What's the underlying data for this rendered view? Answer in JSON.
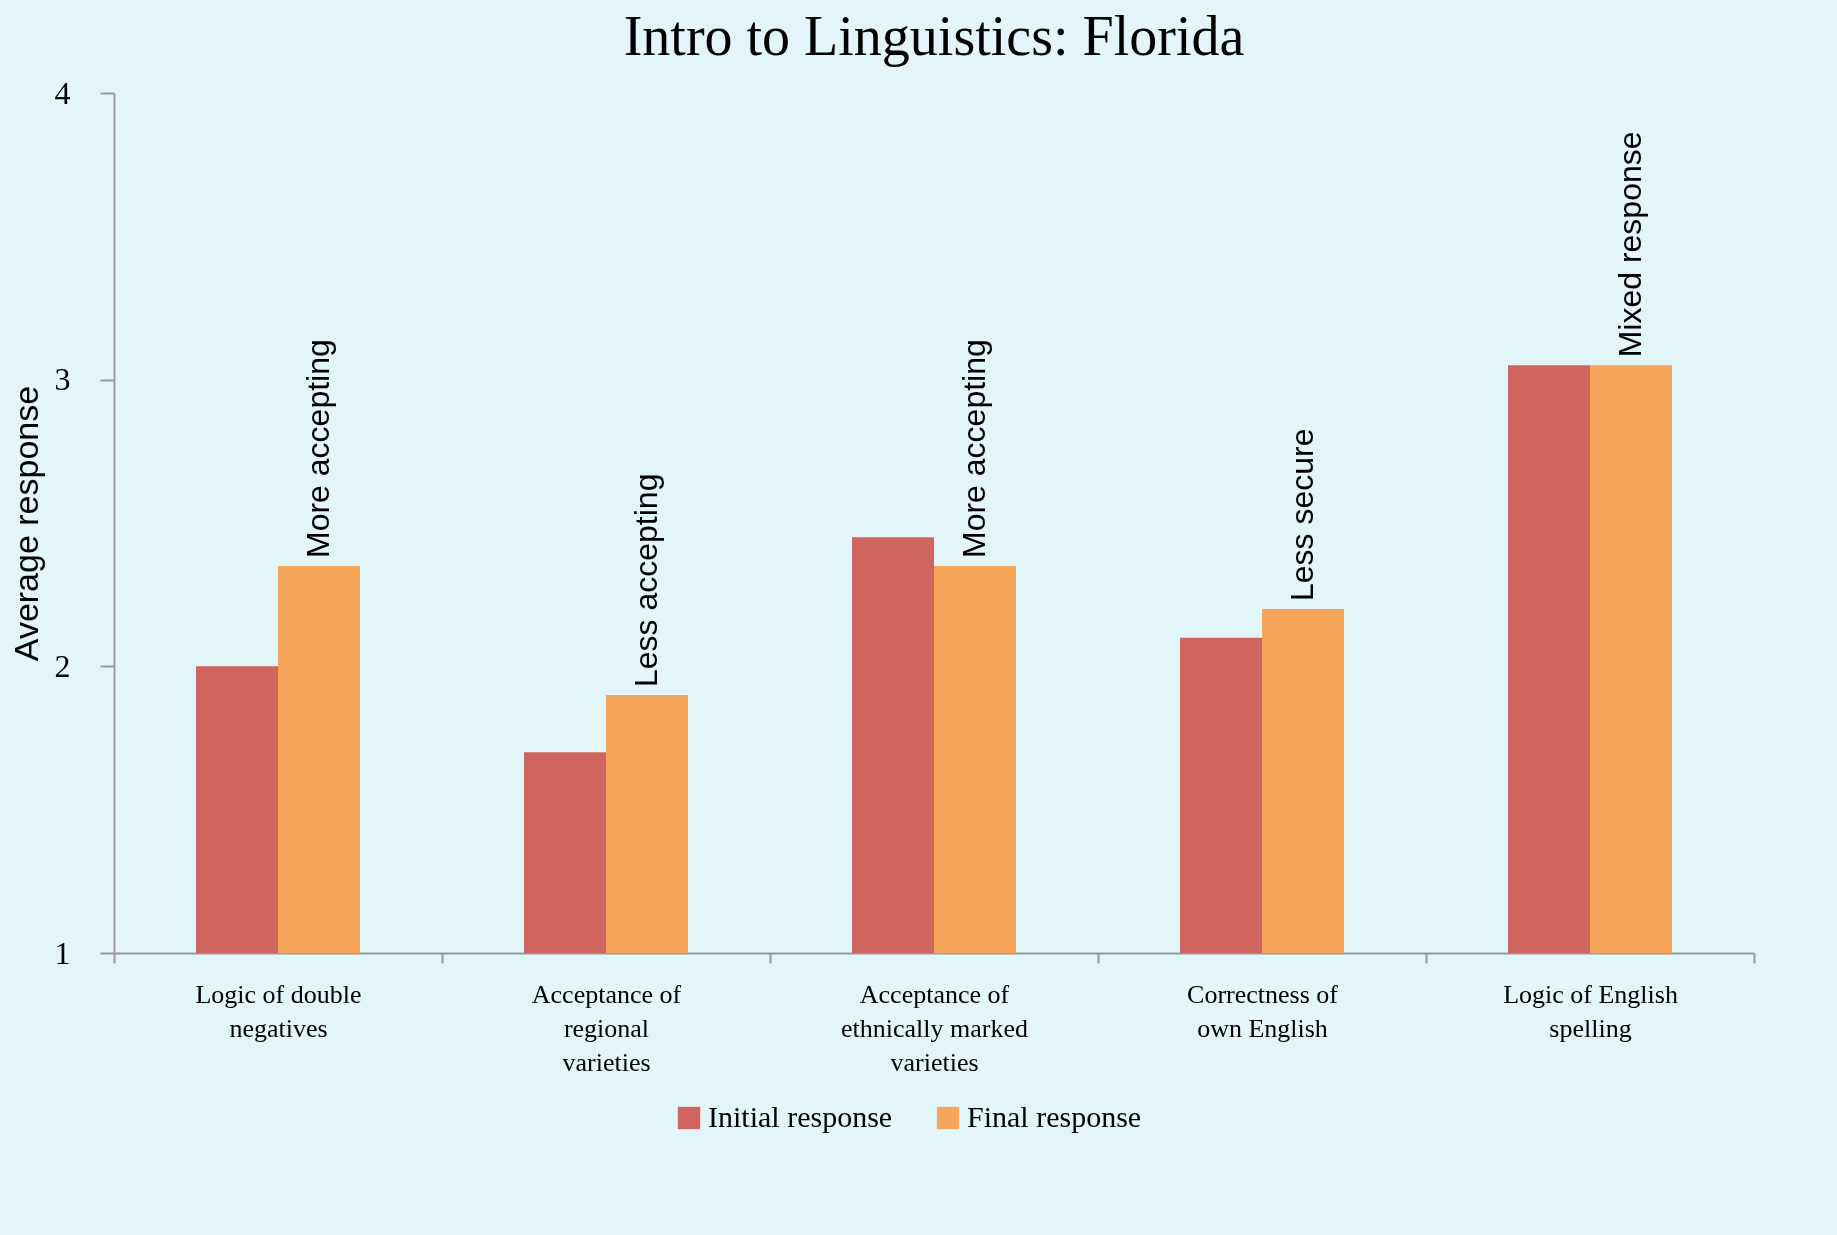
{
  "chart_data": {
    "type": "bar",
    "title": "Intro to Linguistics: Florida",
    "ylabel": "Average response",
    "categories": [
      "Logic of double negatives",
      "Acceptance of regional varieties",
      "Acceptance of ethnically marked varieties",
      "Correctness of own English",
      "Logic of English spelling"
    ],
    "series": [
      {
        "name": "Initial response",
        "color": "#d0645e",
        "values": [
          2.0,
          1.7,
          2.45,
          2.1,
          3.05
        ]
      },
      {
        "name": "Final response",
        "color": "#f7a55a",
        "values": [
          2.35,
          1.9,
          2.35,
          2.2,
          3.05
        ]
      }
    ],
    "ylim": [
      1,
      4
    ],
    "yticks": [
      1,
      2,
      3,
      4
    ],
    "grid": false,
    "legend": "bottom",
    "annotations": [
      {
        "text": "More accepting",
        "x": "Logic of double negatives",
        "y": 2.35
      },
      {
        "text": "Less accepting",
        "x": "Acceptance of regional varieties",
        "y": 1.9
      },
      {
        "text": "More accepting",
        "x": "Acceptance of ethnically marked varieties",
        "y": 2.35
      },
      {
        "text": "Less secure",
        "x": "Correctness of own English",
        "y": 2.2
      },
      {
        "text": "Mixed response",
        "x": "Logic of English spelling",
        "y": 3.05
      }
    ]
  }
}
